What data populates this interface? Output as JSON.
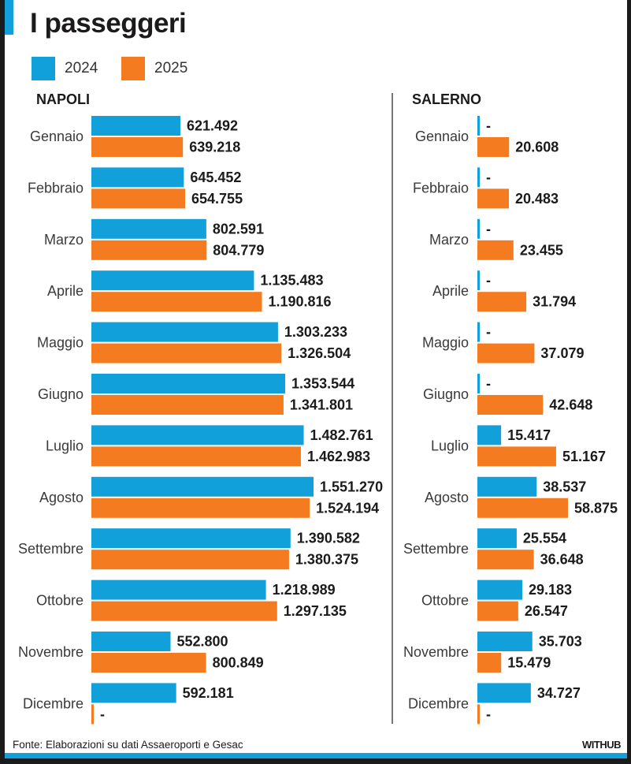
{
  "title": "I passeggeri",
  "legend": [
    {
      "label": "2024",
      "color": "#12a0da"
    },
    {
      "label": "2025",
      "color": "#f47b20"
    }
  ],
  "footer": {
    "source": "Fonte: Elaborazioni su dati Assaeroporti e Gesac",
    "brand": "WITHUB"
  },
  "chart_data": [
    {
      "type": "bar",
      "orientation": "horizontal",
      "title": "NAPOLI",
      "categories": [
        "Gennaio",
        "Febbraio",
        "Marzo",
        "Aprile",
        "Maggio",
        "Giugno",
        "Luglio",
        "Agosto",
        "Settembre",
        "Ottobre",
        "Novembre",
        "Dicembre"
      ],
      "series": [
        {
          "name": "2024",
          "color": "#12a0da",
          "values": [
            621492,
            645452,
            802591,
            1135483,
            1303233,
            1353544,
            1482761,
            1551270,
            1390582,
            1218989,
            552800,
            592181
          ],
          "labels": [
            "621.492",
            "645.452",
            "802.591",
            "1.135.483",
            "1.303.233",
            "1.353.544",
            "1.482.761",
            "1.551.270",
            "1.390.582",
            "1.218.989",
            "552.800",
            "592.181"
          ]
        },
        {
          "name": "2025",
          "color": "#f47b20",
          "values": [
            639218,
            654755,
            804779,
            1190816,
            1326504,
            1341801,
            1462983,
            1524194,
            1380375,
            1297135,
            800849,
            null
          ],
          "labels": [
            "639.218",
            "654.755",
            "804.779",
            "1.190.816",
            "1.326.504",
            "1.341.801",
            "1.462.983",
            "1.524.194",
            "1.380.375",
            "1.297.135",
            "800.849",
            "-"
          ]
        }
      ],
      "xlim": [
        0,
        1551270
      ],
      "grid": false,
      "legend": "top-left"
    },
    {
      "type": "bar",
      "orientation": "horizontal",
      "title": "SALERNO",
      "categories": [
        "Gennaio",
        "Febbraio",
        "Marzo",
        "Aprile",
        "Maggio",
        "Giugno",
        "Luglio",
        "Agosto",
        "Settembre",
        "Ottobre",
        "Novembre",
        "Dicembre"
      ],
      "series": [
        {
          "name": "2024",
          "color": "#12a0da",
          "values": [
            null,
            null,
            null,
            null,
            null,
            null,
            15417,
            38537,
            25554,
            29183,
            35703,
            34727
          ],
          "labels": [
            "-",
            "-",
            "-",
            "-",
            "-",
            "-",
            "15.417",
            "38.537",
            "25.554",
            "29.183",
            "35.703",
            "34.727"
          ]
        },
        {
          "name": "2025",
          "color": "#f47b20",
          "values": [
            20608,
            20483,
            23455,
            31794,
            37079,
            42648,
            51167,
            58875,
            36648,
            26547,
            15479,
            null
          ],
          "labels": [
            "20.608",
            "20.483",
            "23.455",
            "31.794",
            "37.079",
            "42.648",
            "51.167",
            "58.875",
            "36.648",
            "26.547",
            "15.479",
            "-"
          ]
        }
      ],
      "xlim": [
        0,
        58875
      ],
      "grid": false,
      "legend": "top-left"
    }
  ]
}
